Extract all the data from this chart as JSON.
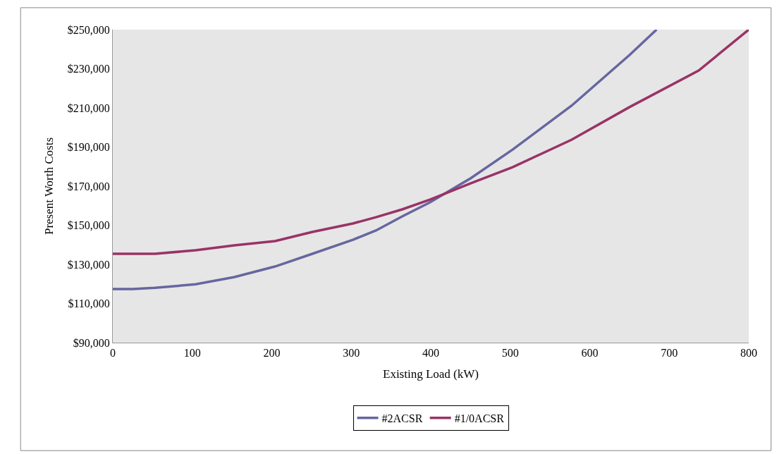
{
  "chart_data": {
    "type": "line",
    "xlabel": "Existing Load (kW)",
    "ylabel": "Present Worth Costs",
    "xlim": [
      0,
      800
    ],
    "xticks": [
      0,
      100,
      200,
      300,
      400,
      500,
      600,
      700,
      800
    ],
    "ylim": [
      90000,
      250000
    ],
    "yticks": [
      {
        "value": 90000,
        "label": "$90,000"
      },
      {
        "value": 110000,
        "label": "$110,000"
      },
      {
        "value": 130000,
        "label": "$130,000"
      },
      {
        "value": 150000,
        "label": "$150,000"
      },
      {
        "value": 170000,
        "label": "$170,000"
      },
      {
        "value": 190000,
        "label": "$190,000"
      },
      {
        "value": 210000,
        "label": "$210,000"
      },
      {
        "value": 230000,
        "label": "$230,000"
      },
      {
        "value": 250000,
        "label": "$250,000"
      }
    ],
    "grid": false,
    "legend": "bottom",
    "marker": "none",
    "line_style": "solid",
    "series": [
      {
        "name": "#2ACSR",
        "color": "#6666a0",
        "x": [
          0,
          25,
          53,
          104,
          153,
          204,
          251,
          302,
          331,
          364,
          399,
          450,
          503,
          577,
          650,
          684
        ],
        "values": [
          117400,
          117400,
          118000,
          119800,
          123500,
          128900,
          135400,
          142600,
          147300,
          154500,
          161700,
          174000,
          188700,
          211100,
          237000,
          250000
        ]
      },
      {
        "name": "#1/0ACSR",
        "color": "#993366",
        "x": [
          0,
          25,
          53,
          104,
          153,
          204,
          251,
          302,
          331,
          364,
          399,
          450,
          503,
          577,
          650,
          737,
          800
        ],
        "values": [
          135400,
          135400,
          135400,
          137200,
          139700,
          141900,
          146600,
          150900,
          154100,
          158100,
          163100,
          171400,
          179700,
          193700,
          210400,
          229100,
          250000
        ]
      }
    ]
  }
}
